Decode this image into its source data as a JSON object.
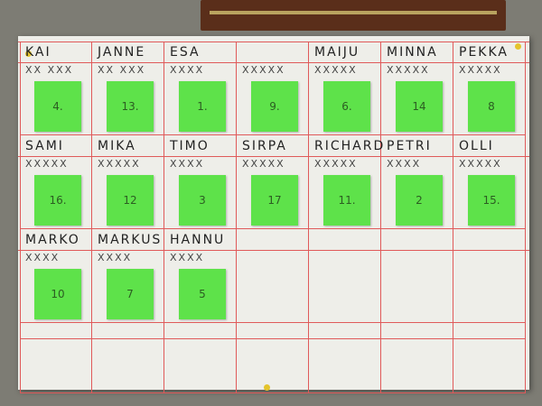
{
  "board": {
    "cells": [
      {
        "name": "KAI",
        "marks": "XX XXX",
        "note": "4."
      },
      {
        "name": "JANNE",
        "marks": "XX XXX",
        "note": "13."
      },
      {
        "name": "ESA",
        "marks": "XXXX",
        "note": "1."
      },
      {
        "name": null,
        "marks": "XXXXX",
        "note": "9."
      },
      {
        "name": "MAIJU",
        "marks": "XXXXX",
        "note": "6."
      },
      {
        "name": "MINNA",
        "marks": "XXXXX",
        "note": "14"
      },
      {
        "name": "PEKKA",
        "marks": "XXXXX",
        "note": "8"
      },
      {
        "name": "SAMI",
        "marks": "XXXXX",
        "note": "16."
      },
      {
        "name": "MIKA",
        "marks": "XXXXX",
        "note": "12"
      },
      {
        "name": "TIMO",
        "marks": "XXXX",
        "note": "3"
      },
      {
        "name": "SIRPA",
        "marks": "XXXXX",
        "note": "17"
      },
      {
        "name": "RICHARD",
        "marks": "XXXXX",
        "note": "11."
      },
      {
        "name": "PETRI",
        "marks": "XXXX",
        "note": "2"
      },
      {
        "name": "OLLI",
        "marks": "XXXXX",
        "note": "15."
      },
      {
        "name": "MARKO",
        "marks": "XXXX",
        "note": "10"
      },
      {
        "name": "MARKUS",
        "marks": "XXXX",
        "note": "7"
      },
      {
        "name": "HANNU",
        "marks": "XXXX",
        "note": "5"
      }
    ]
  }
}
